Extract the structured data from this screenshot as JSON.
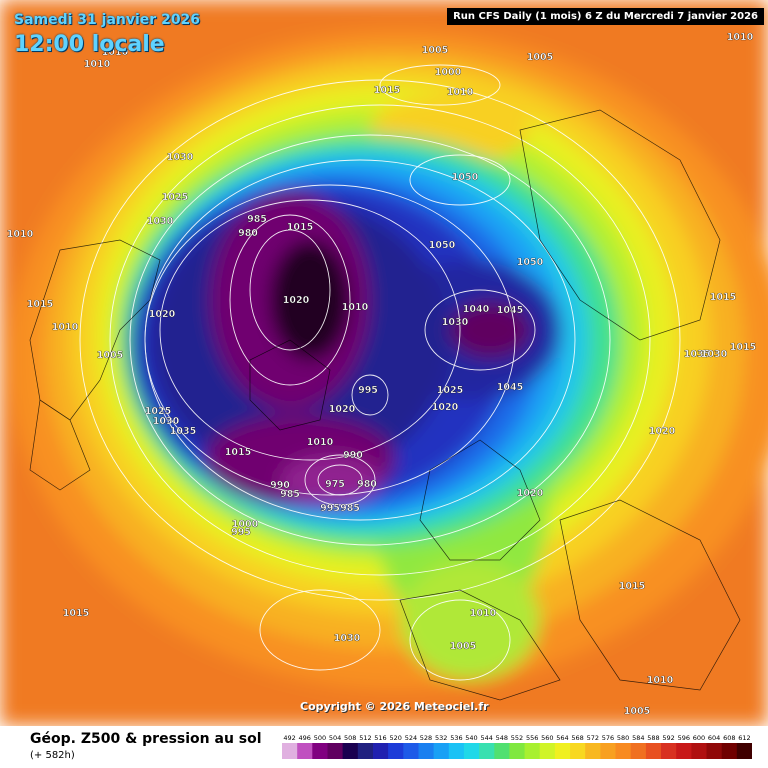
{
  "header": {
    "date": "Samedi 31 janvier 2026",
    "local_time": "12:00 locale",
    "run_info": "Run CFS Daily (1 mois) 6 Z du Mercredi 7 janvier 2026"
  },
  "copyright": "Copyright © 2026 Meteociel.fr",
  "legend": {
    "title": "Géop. Z500 & pression au sol",
    "subtitle": "(+ 582h)",
    "scale_values": [
      "492",
      "496",
      "500",
      "504",
      "508",
      "512",
      "516",
      "520",
      "524",
      "528",
      "532",
      "536",
      "540",
      "544",
      "548",
      "552",
      "556",
      "560",
      "564",
      "568",
      "572",
      "576",
      "580",
      "584",
      "588",
      "592",
      "596",
      "600",
      "604",
      "608",
      "612"
    ],
    "scale_colors": [
      "#e0b0e0",
      "#c050c0",
      "#800080",
      "#600060",
      "#1a0050",
      "#202080",
      "#2020b0",
      "#1d3bd8",
      "#1e5ae8",
      "#1a7ff0",
      "#19a0f5",
      "#1bc2f5",
      "#20d8e8",
      "#38e0b0",
      "#50e070",
      "#80e840",
      "#a8f030",
      "#d0f428",
      "#f0f020",
      "#f8d820",
      "#f8b820",
      "#f8a020",
      "#f88a20",
      "#f07020",
      "#e85020",
      "#d83020",
      "#c81818",
      "#b01010",
      "#900808",
      "#700000",
      "#400000"
    ]
  },
  "pressure_labels": [
    {
      "text": "1010",
      "cls": "w"
    },
    {
      "text": "1010",
      "cls": "w"
    },
    {
      "text": "1005",
      "cls": "w"
    },
    {
      "text": "1000",
      "cls": "w"
    },
    {
      "text": "1005",
      "cls": "w"
    },
    {
      "text": "1015",
      "cls": "w"
    },
    {
      "text": "1010",
      "cls": "w"
    },
    {
      "text": "1010",
      "cls": "w"
    },
    {
      "text": "1030",
      "cls": "w"
    },
    {
      "text": "1025",
      "cls": "w"
    },
    {
      "text": "1030",
      "cls": "w"
    },
    {
      "text": "1050",
      "cls": "w"
    },
    {
      "text": "1010",
      "cls": "w"
    },
    {
      "text": "985",
      "cls": "w"
    },
    {
      "text": "980",
      "cls": "w"
    },
    {
      "text": "1015",
      "cls": "w"
    },
    {
      "text": "1050",
      "cls": "w"
    },
    {
      "text": "1050",
      "cls": "w"
    },
    {
      "text": "1015",
      "cls": "w"
    },
    {
      "text": "1015",
      "cls": "w"
    },
    {
      "text": "1020",
      "cls": "w"
    },
    {
      "text": "1010",
      "cls": "w"
    },
    {
      "text": "1040",
      "cls": "w"
    },
    {
      "text": "1045",
      "cls": "w"
    },
    {
      "text": "1030",
      "cls": "w"
    },
    {
      "text": "1010",
      "cls": "w"
    },
    {
      "text": "1020",
      "cls": "w"
    },
    {
      "text": "1005",
      "cls": "w"
    },
    {
      "text": "1035",
      "cls": "w"
    },
    {
      "text": "1030",
      "cls": "w"
    },
    {
      "text": "1015",
      "cls": "w"
    },
    {
      "text": "995",
      "cls": "w"
    },
    {
      "text": "1025",
      "cls": "w"
    },
    {
      "text": "1045",
      "cls": "w"
    },
    {
      "text": "1020",
      "cls": "w"
    },
    {
      "text": "1025",
      "cls": "w"
    },
    {
      "text": "1030",
      "cls": "w"
    },
    {
      "text": "1035",
      "cls": "w"
    },
    {
      "text": "1020",
      "cls": "w"
    },
    {
      "text": "1010",
      "cls": "w"
    },
    {
      "text": "990",
      "cls": "w"
    },
    {
      "text": "1015",
      "cls": "w"
    },
    {
      "text": "990",
      "cls": "w"
    },
    {
      "text": "975",
      "cls": "w"
    },
    {
      "text": "980",
      "cls": "w"
    },
    {
      "text": "985",
      "cls": "w"
    },
    {
      "text": "995",
      "cls": "w"
    },
    {
      "text": "985",
      "cls": "w"
    },
    {
      "text": "1020",
      "cls": "w"
    },
    {
      "text": "1000",
      "cls": "w"
    },
    {
      "text": "995",
      "cls": "w"
    },
    {
      "text": "1020",
      "cls": "w"
    },
    {
      "text": "1015",
      "cls": "w"
    },
    {
      "text": "1010",
      "cls": "w"
    },
    {
      "text": "1030",
      "cls": "w"
    },
    {
      "text": "1005",
      "cls": "w"
    },
    {
      "text": "1015",
      "cls": "w"
    },
    {
      "text": "1010",
      "cls": "w"
    },
    {
      "text": "1005",
      "cls": "w"
    }
  ]
}
